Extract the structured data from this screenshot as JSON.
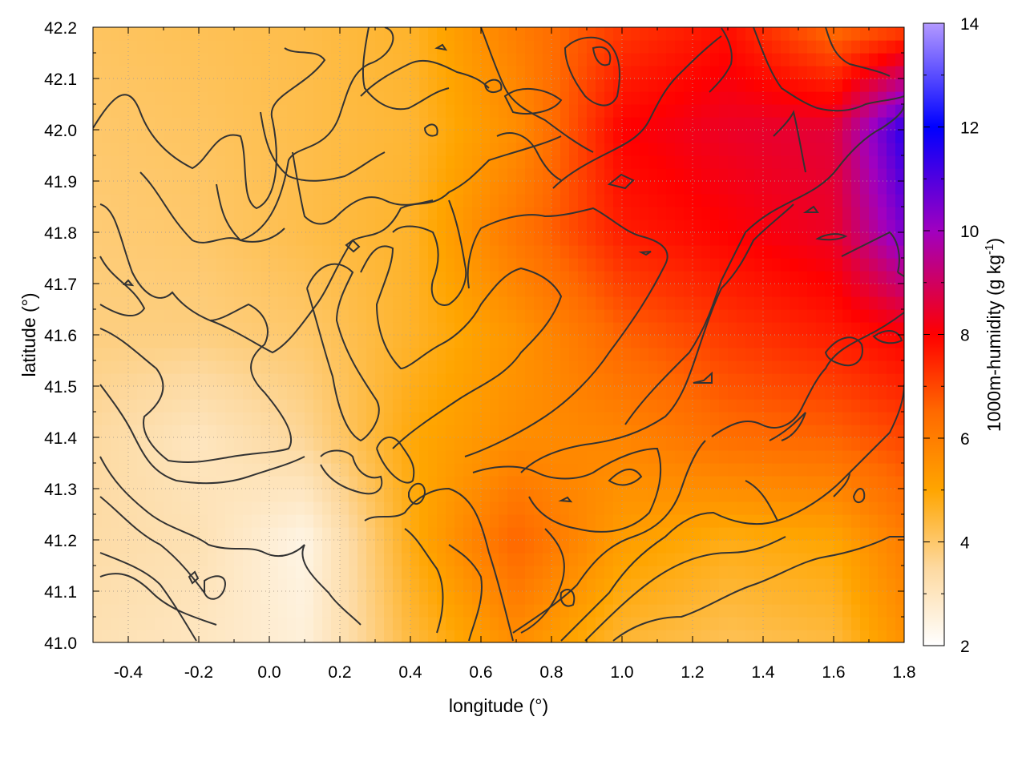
{
  "chart_data": {
    "type": "heatmap",
    "title": "",
    "xlabel": "longitude (°)",
    "ylabel": "latitude (°)",
    "xlim": [
      -0.5,
      1.8
    ],
    "ylim": [
      41.0,
      42.2
    ],
    "x_ticks": [
      -0.4,
      -0.2,
      0.0,
      0.2,
      0.4,
      0.6,
      0.8,
      1.0,
      1.2,
      1.4,
      1.6,
      1.8
    ],
    "x_tick_labels": [
      "-0.4",
      "-0.2",
      "0.0",
      "0.2",
      "0.4",
      "0.6",
      "0.8",
      "1.0",
      "1.2",
      "1.4",
      "1.6",
      "1.8"
    ],
    "y_ticks": [
      41.0,
      41.1,
      41.2,
      41.3,
      41.4,
      41.5,
      41.6,
      41.7,
      41.8,
      41.9,
      42.0,
      42.1,
      42.2
    ],
    "y_tick_labels": [
      "41.0",
      "41.1",
      "41.2",
      "41.3",
      "41.4",
      "41.5",
      "41.6",
      "41.7",
      "41.8",
      "41.9",
      "42.0",
      "42.1",
      "42.2"
    ],
    "grid": true,
    "colorbar": {
      "label": "1000m-humidity (g kg",
      "label_sup": "-1",
      "label_close": ")",
      "range": [
        2,
        14
      ],
      "ticks": [
        2,
        4,
        6,
        8,
        10,
        12,
        14
      ],
      "tick_labels": [
        "2",
        "4",
        "6",
        "8",
        "10",
        "12",
        "14"
      ],
      "colormap": [
        {
          "value": 2,
          "color": "#ffffff"
        },
        {
          "value": 3.5,
          "color": "#fdd9a0"
        },
        {
          "value": 5,
          "color": "#ffa500"
        },
        {
          "value": 6.5,
          "color": "#ff6a00"
        },
        {
          "value": 8,
          "color": "#ff0000"
        },
        {
          "value": 10,
          "color": "#a000c0"
        },
        {
          "value": 12,
          "color": "#0000ff"
        },
        {
          "value": 14,
          "color": "#b399ff"
        }
      ]
    },
    "contour_color": "#333333",
    "field_estimate": {
      "lon": [
        -0.5,
        -0.2,
        0.1,
        0.4,
        0.7,
        1.0,
        1.3,
        1.6,
        1.8
      ],
      "lat": [
        41.0,
        41.2,
        41.4,
        41.6,
        41.8,
        42.0,
        42.2
      ],
      "values": [
        [
          3.2,
          3.0,
          2.6,
          4.4,
          5.6,
          4.5,
          4.2,
          4.4,
          5.5
        ],
        [
          3.4,
          3.2,
          2.4,
          4.8,
          6.6,
          5.2,
          4.8,
          5.0,
          6.0
        ],
        [
          3.5,
          3.0,
          3.6,
          4.9,
          5.6,
          5.8,
          6.4,
          6.6,
          7.0
        ],
        [
          3.8,
          3.8,
          4.0,
          4.6,
          5.4,
          6.6,
          7.2,
          7.6,
          8.0
        ],
        [
          3.9,
          4.0,
          4.3,
          4.6,
          6.2,
          7.6,
          8.0,
          8.4,
          10.5
        ],
        [
          4.0,
          4.1,
          4.3,
          4.5,
          5.6,
          8.0,
          8.4,
          8.6,
          11.5
        ],
        [
          4.1,
          4.2,
          4.3,
          4.6,
          6.0,
          7.2,
          7.8,
          6.4,
          7.0
        ]
      ]
    }
  }
}
